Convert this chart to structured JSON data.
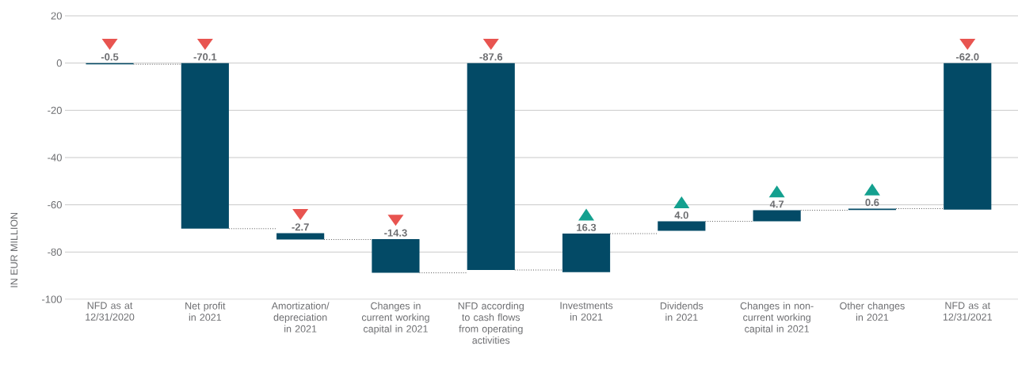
{
  "chart_data": {
    "type": "bar",
    "ylabel": "IN EUR MILLION",
    "categories": [
      "NFD as at 12/31/2020",
      "Net profit in 2021",
      "Amortization/ depreciation in 2021",
      "Changes in current working capital in 2021",
      "NFD according to cash flows from operating activities",
      "Investments in 2021",
      "Dividends in 2021",
      "Changes in non-current working capital in 2021",
      "Other changes in 2021",
      "NFD as at 12/31/2021"
    ],
    "values": [
      -0.5,
      -70.1,
      -2.7,
      -14.3,
      -87.6,
      16.3,
      4.0,
      4.7,
      0.6,
      -62.0
    ],
    "base": [
      0,
      0,
      -72,
      -74.5,
      0,
      -88.5,
      -71,
      -67,
      -62.2,
      0
    ],
    "value_labels": [
      "-0.5",
      "-70.1",
      "-2.7",
      "-14.3",
      "-87.6",
      "16.3",
      "4.0",
      "4.7",
      "0.6",
      "-62.0"
    ],
    "color": "#034a66",
    "ylim": [
      -100,
      20
    ],
    "yticks": [
      -100,
      -80,
      -60,
      -40,
      -20,
      0,
      20
    ],
    "grid": "y"
  }
}
